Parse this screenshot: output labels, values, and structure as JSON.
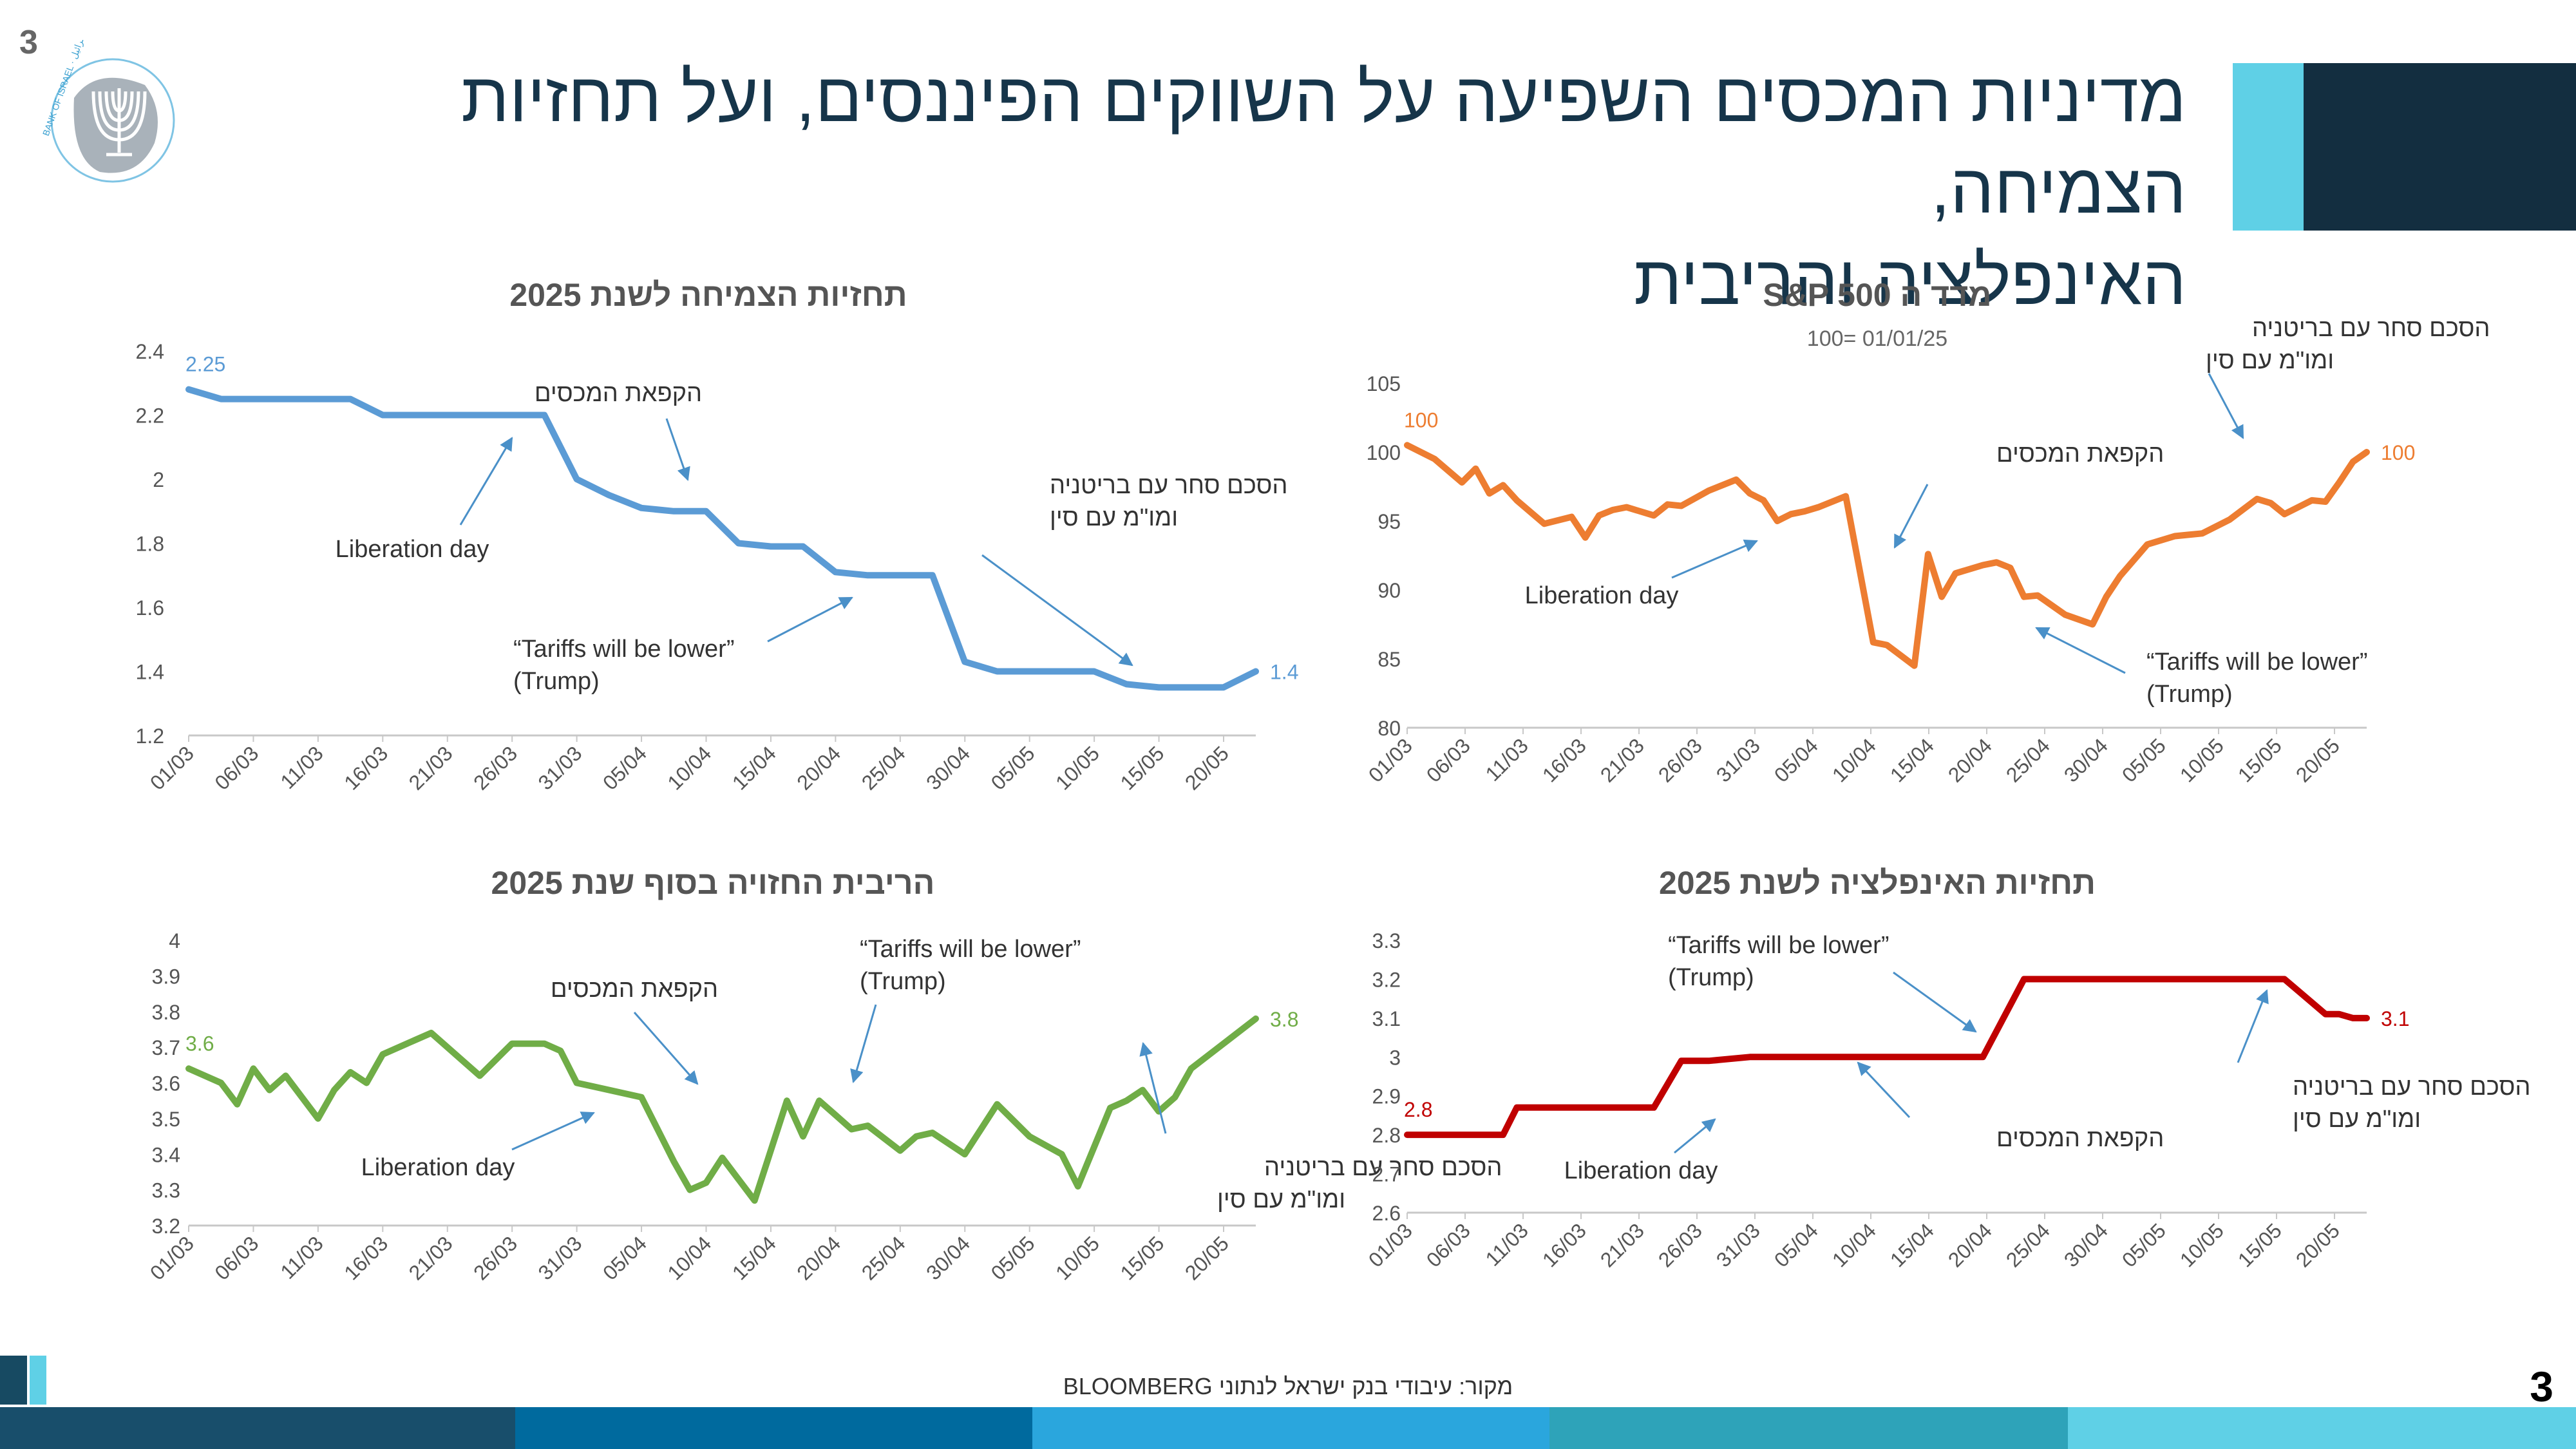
{
  "page": {
    "number": "3",
    "title_line1": "מדיניות המכסים השפיעה על השווקים הפיננסים, ועל תחזיות הצמיחה,",
    "title_line2": "האינפלציה והריבית",
    "source": "מקור: עיבודי בנק ישראל לנתוני BLOOMBERG",
    "logo_text": "BANK OF ISRAEL · בנק ישראל · بنك إسرائيل"
  },
  "colors": {
    "navy": "#132e40",
    "cyan": "#5fd0e6",
    "growth": "#5b9bd5",
    "sp500": "#ed7d31",
    "rate": "#70ad47",
    "inflation": "#c00000",
    "arrow": "#4a90c8"
  },
  "x_labels": [
    "01/03",
    "06/03",
    "11/03",
    "16/03",
    "21/03",
    "26/03",
    "31/03",
    "05/04",
    "10/04",
    "15/04",
    "20/04",
    "25/04",
    "30/04",
    "05/05",
    "10/05",
    "15/05",
    "20/05"
  ],
  "chart_data": [
    {
      "id": "growth",
      "type": "line",
      "title": "תחזיות הצמיחה לשנת 2025",
      "ylim": [
        1.2,
        2.4
      ],
      "yticks": [
        "1.2",
        "1.4",
        "1.6",
        "1.8",
        "2",
        "2.2",
        "2.4"
      ],
      "start_label": "2.25",
      "end_label": "1.4",
      "series": [
        {
          "name": "growth_forecast",
          "x": [
            0,
            2,
            4,
            6,
            8,
            10,
            12,
            14,
            16,
            18,
            20,
            22,
            24,
            26,
            28,
            30,
            32,
            34,
            36,
            38,
            40,
            42,
            44,
            46,
            48,
            50,
            52,
            54,
            56,
            58,
            60,
            62,
            64,
            66
          ],
          "y": [
            2.28,
            2.25,
            2.25,
            2.25,
            2.25,
            2.25,
            2.2,
            2.2,
            2.2,
            2.2,
            2.2,
            2.2,
            2.0,
            1.95,
            1.91,
            1.9,
            1.9,
            1.8,
            1.79,
            1.79,
            1.71,
            1.7,
            1.7,
            1.7,
            1.43,
            1.4,
            1.4,
            1.4,
            1.4,
            1.36,
            1.35,
            1.35,
            1.35,
            1.4
          ]
        }
      ],
      "annotations": [
        {
          "text": "Liberation day"
        },
        {
          "text": "הקפאת המכסים"
        },
        {
          "text": "הסכם סחר עם בריטניה",
          "text2": "ומו\"מ עם סין"
        },
        {
          "text": "“Tariffs will be lower”",
          "text2": "(Trump)"
        }
      ]
    },
    {
      "id": "sp500",
      "type": "line",
      "title": "מדד ה S&P 500",
      "subtitle": "100= 01/01/25",
      "ylim": [
        80,
        105
      ],
      "yticks": [
        "80",
        "85",
        "90",
        "95",
        "100",
        "105"
      ],
      "start_label": "100",
      "end_label": "100",
      "series": [
        {
          "name": "sp500_index",
          "x": [
            0,
            2,
            4,
            5,
            6,
            7,
            8,
            10,
            12,
            13,
            14,
            15,
            16,
            18,
            19,
            20,
            22,
            24,
            25,
            26,
            27,
            28,
            29,
            30,
            32,
            34,
            35,
            37,
            38,
            39,
            40,
            42,
            43,
            44,
            45,
            46,
            48,
            50,
            51,
            52,
            54,
            56,
            57,
            58,
            60,
            62,
            63,
            64,
            66,
            67,
            68,
            69,
            70
          ],
          "y": [
            100.5,
            99.5,
            97.8,
            98.8,
            97,
            97.6,
            96.5,
            94.8,
            95.3,
            93.8,
            95.4,
            95.8,
            96,
            95.4,
            96.2,
            96.1,
            97.2,
            98,
            97,
            96.5,
            95,
            95.5,
            95.7,
            96,
            96.8,
            86.2,
            86,
            84.5,
            92.6,
            89.5,
            91.2,
            91.8,
            92,
            91.6,
            89.5,
            89.6,
            88.2,
            87.5,
            89.5,
            91,
            93.3,
            93.9,
            94,
            94.1,
            95.1,
            96.6,
            96.3,
            95.5,
            96.5,
            96.4,
            97.8,
            99.3,
            100
          ]
        }
      ],
      "annotations": [
        {
          "text": "הסכם סחר עם בריטניה",
          "text2": "ומו\"מ עם סין"
        },
        {
          "text": "הקפאת המכסים"
        },
        {
          "text": "Liberation day"
        },
        {
          "text": "“Tariffs will be lower”",
          "text2": "(Trump)"
        }
      ]
    },
    {
      "id": "rate",
      "type": "line",
      "title": "הריבית החזויה בסוף שנת 2025",
      "ylim": [
        3.2,
        4.0
      ],
      "yticks": [
        "3.2",
        "3.3",
        "3.4",
        "3.5",
        "3.6",
        "3.7",
        "3.8",
        "3.9",
        "4"
      ],
      "start_label": "3.6",
      "end_label": "3.8",
      "series": [
        {
          "name": "expected_rate",
          "x": [
            0,
            2,
            3,
            4,
            5,
            6,
            8,
            9,
            10,
            11,
            12,
            14,
            15,
            18,
            20,
            22,
            23,
            24,
            25,
            28,
            30,
            31,
            32,
            33,
            35,
            37,
            38,
            39,
            40,
            41,
            42,
            44,
            45,
            46,
            48,
            50,
            52,
            54,
            55,
            57,
            58,
            59,
            60,
            61,
            62,
            64,
            66
          ],
          "y": [
            3.64,
            3.6,
            3.54,
            3.64,
            3.58,
            3.62,
            3.5,
            3.58,
            3.63,
            3.6,
            3.68,
            3.72,
            3.74,
            3.62,
            3.71,
            3.71,
            3.69,
            3.6,
            3.59,
            3.56,
            3.38,
            3.3,
            3.32,
            3.39,
            3.27,
            3.55,
            3.45,
            3.55,
            3.51,
            3.47,
            3.48,
            3.41,
            3.45,
            3.46,
            3.4,
            3.54,
            3.45,
            3.4,
            3.31,
            3.53,
            3.55,
            3.58,
            3.52,
            3.56,
            3.64,
            3.71,
            3.78
          ]
        }
      ],
      "annotations": [
        {
          "text": "“Tariffs will be lower”",
          "text2": "(Trump)"
        },
        {
          "text": "הקפאת המכסים"
        },
        {
          "text": "Liberation day"
        },
        {
          "text": "הסכם סחר עם בריטניה",
          "text2": "ומו\"מ עם סין"
        }
      ]
    },
    {
      "id": "inflation",
      "type": "line",
      "title": "תחזיות האינפלציה לשנת 2025",
      "ylim": [
        2.6,
        3.3
      ],
      "yticks": [
        "2.6",
        "2.7",
        "2.8",
        "2.9",
        "3",
        "3.1",
        "3.2",
        "3.3"
      ],
      "start_label": "2.8",
      "end_label": "3.1",
      "series": [
        {
          "name": "inflation_forecast",
          "x": [
            0,
            5,
            7,
            8,
            10,
            15,
            18,
            20,
            22,
            25,
            28,
            30,
            35,
            40,
            42,
            45,
            50,
            54,
            58,
            61,
            62,
            64,
            66,
            67,
            68,
            69,
            70
          ],
          "y": [
            2.8,
            2.8,
            2.8,
            2.87,
            2.87,
            2.87,
            2.87,
            2.99,
            2.99,
            3,
            3,
            3,
            3,
            3,
            3,
            3.2,
            3.2,
            3.2,
            3.2,
            3.2,
            3.2,
            3.2,
            3.14,
            3.11,
            3.11,
            3.1,
            3.1
          ]
        }
      ],
      "annotations": [
        {
          "text": "“Tariffs will be lower”",
          "text2": "(Trump)"
        },
        {
          "text": "הסכם סחר עם בריטניה",
          "text2": "ומו\"מ עם סין"
        },
        {
          "text": "הקפאת המכסים"
        },
        {
          "text": "Liberation day"
        }
      ]
    }
  ]
}
